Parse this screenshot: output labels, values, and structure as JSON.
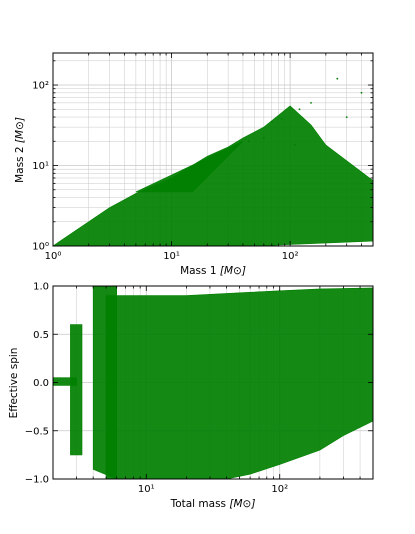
{
  "chart_data": [
    {
      "type": "scatter",
      "xlabel": "Mass 1",
      "xunit": "[M⊙]",
      "ylabel": "Mass 2",
      "yunit": "[M⊙]",
      "xscale": "log",
      "yscale": "log",
      "xlim": [
        1,
        500
      ],
      "ylim": [
        1,
        250
      ],
      "x_ticks": [
        1,
        10,
        100
      ],
      "x_tick_labels": [
        "10⁰",
        "10¹",
        "10²"
      ],
      "y_ticks": [
        1,
        10,
        100
      ],
      "y_tick_labels": [
        "10⁰",
        "10¹",
        "10²"
      ],
      "grid": true,
      "color": "#007f00",
      "regions": [
        {
          "name": "main band",
          "polygon": [
            [
              1,
              1
            ],
            [
              2,
              1
            ],
            [
              5,
              1
            ],
            [
              50,
              1
            ],
            [
              500,
              1.15
            ],
            [
              500,
              6.5
            ],
            [
              200,
              18
            ],
            [
              150,
              32
            ],
            [
              100,
              55
            ],
            [
              60,
              30
            ],
            [
              40,
              22
            ],
            [
              30,
              17
            ],
            [
              20,
              13
            ],
            [
              10,
              7
            ],
            [
              5,
              4.5
            ],
            [
              3,
              3
            ],
            [
              1.3,
              1.3
            ]
          ]
        },
        {
          "name": "upper wedge",
          "polygon": [
            [
              5,
              4.7
            ],
            [
              40,
              20
            ],
            [
              15,
              4.7
            ]
          ]
        },
        {
          "name": "outliers",
          "points": [
            [
              60,
              22
            ],
            [
              70,
              35
            ],
            [
              45,
              20
            ],
            [
              85,
              38
            ],
            [
              120,
              50
            ],
            [
              150,
              60
            ],
            [
              250,
              120
            ],
            [
              110,
              18
            ],
            [
              300,
              40
            ],
            [
              400,
              80
            ]
          ]
        }
      ]
    },
    {
      "type": "scatter",
      "xlabel": "Total mass",
      "xunit": "[M⊙]",
      "ylabel": "Effective spin",
      "xscale": "log",
      "xlim": [
        2,
        500
      ],
      "ylim": [
        -1.0,
        1.0
      ],
      "x_ticks": [
        10,
        100
      ],
      "x_tick_labels": [
        "10¹",
        "10²"
      ],
      "y_ticks": [
        -1.0,
        -0.5,
        0.0,
        0.5,
        1.0
      ],
      "y_tick_labels": [
        "−1.0",
        "−0.5",
        "0.0",
        "0.5",
        "1.0"
      ],
      "grid": true,
      "color": "#007f00",
      "regions": [
        {
          "name": "main cloud",
          "polygon": [
            [
              5,
              -1.0
            ],
            [
              20,
              -1.0
            ],
            [
              40,
              -1.0
            ],
            [
              60,
              -0.95
            ],
            [
              100,
              -0.85
            ],
            [
              200,
              -0.7
            ],
            [
              300,
              -0.55
            ],
            [
              500,
              -0.4
            ],
            [
              500,
              0.98
            ],
            [
              200,
              0.97
            ],
            [
              100,
              0.95
            ],
            [
              50,
              0.93
            ],
            [
              20,
              0.9
            ],
            [
              10,
              0.9
            ],
            [
              5,
              0.9
            ]
          ]
        },
        {
          "name": "tall column",
          "polygon": [
            [
              4,
              -0.9
            ],
            [
              6,
              -1.0
            ],
            [
              6,
              1.0
            ],
            [
              4,
              1.0
            ]
          ]
        },
        {
          "name": "spike",
          "polygon": [
            [
              2.0,
              -0.03
            ],
            [
              2.0,
              0.05
            ],
            [
              3.0,
              0.05
            ],
            [
              3.0,
              -0.03
            ]
          ]
        },
        {
          "name": "left column",
          "polygon": [
            [
              2.7,
              -0.75
            ],
            [
              3.3,
              -0.75
            ],
            [
              3.3,
              0.6
            ],
            [
              2.7,
              0.6
            ]
          ]
        }
      ]
    }
  ]
}
